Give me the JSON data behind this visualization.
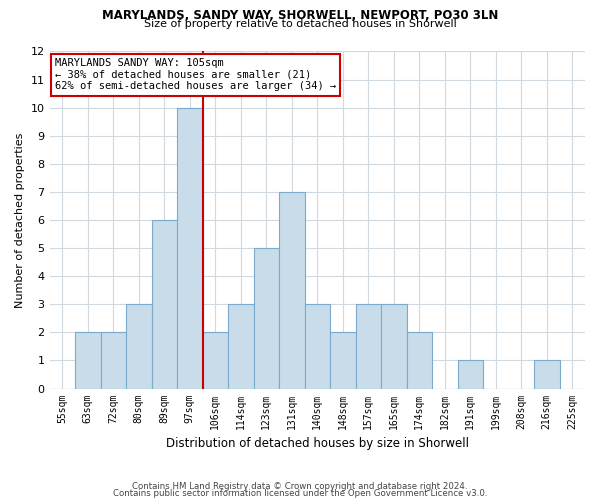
{
  "title1": "MARYLANDS, SANDY WAY, SHORWELL, NEWPORT, PO30 3LN",
  "title2": "Size of property relative to detached houses in Shorwell",
  "xlabel": "Distribution of detached houses by size in Shorwell",
  "ylabel": "Number of detached properties",
  "categories": [
    "55sqm",
    "63sqm",
    "72sqm",
    "80sqm",
    "89sqm",
    "97sqm",
    "106sqm",
    "114sqm",
    "123sqm",
    "131sqm",
    "140sqm",
    "148sqm",
    "157sqm",
    "165sqm",
    "174sqm",
    "182sqm",
    "191sqm",
    "199sqm",
    "208sqm",
    "216sqm",
    "225sqm"
  ],
  "values": [
    0,
    2,
    2,
    3,
    6,
    10,
    2,
    3,
    5,
    7,
    3,
    2,
    3,
    3,
    2,
    0,
    1,
    0,
    0,
    1,
    0
  ],
  "bar_color": "#c8dcea",
  "bar_edge_color": "#7aabcc",
  "red_line_x": 6,
  "highlight_line_color": "#cc0000",
  "ylim_min": 0,
  "ylim_max": 12,
  "yticks": [
    0,
    1,
    2,
    3,
    4,
    5,
    6,
    7,
    8,
    9,
    10,
    11,
    12
  ],
  "annotation_text": "MARYLANDS SANDY WAY: 105sqm\n← 38% of detached houses are smaller (21)\n62% of semi-detached houses are larger (34) →",
  "annotation_box_color": "#ffffff",
  "annotation_box_edge": "#cc0000",
  "footer1": "Contains HM Land Registry data © Crown copyright and database right 2024.",
  "footer2": "Contains public sector information licensed under the Open Government Licence v3.0.",
  "bg_color": "#ffffff",
  "grid_color": "#d0d8e0"
}
